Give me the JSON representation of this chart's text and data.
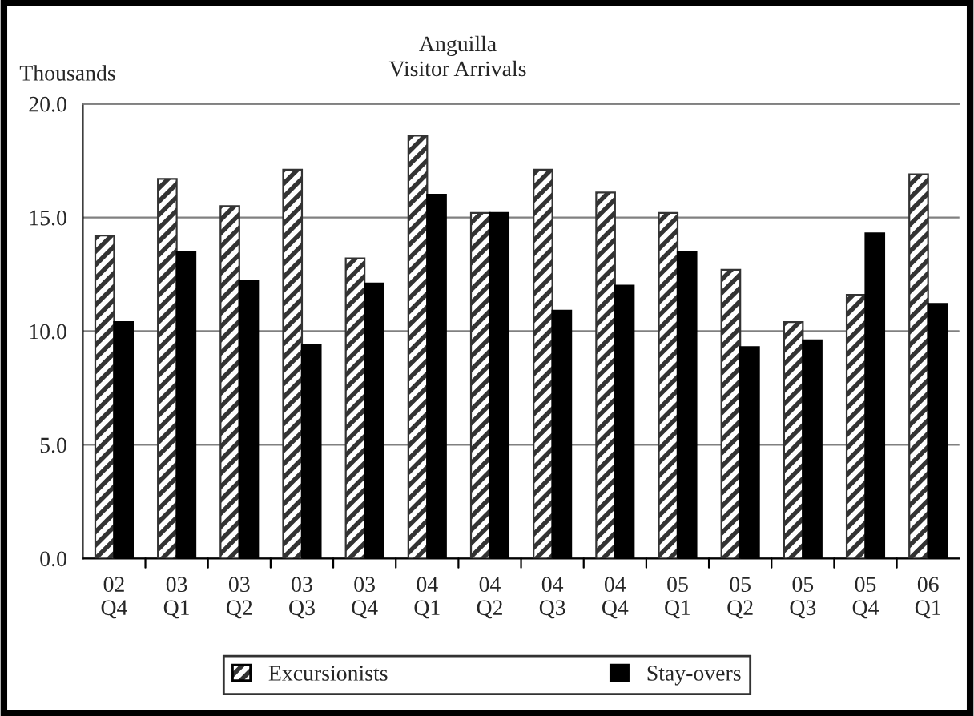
{
  "chart_data": {
    "type": "bar",
    "title": "Anguilla\nVisitor Arrivals",
    "ylabel": "Thousands",
    "categories": [
      "02\nQ4",
      "03\nQ1",
      "03\nQ2",
      "03\nQ3",
      "03\nQ4",
      "04\nQ1",
      "04\nQ2",
      "04\nQ3",
      "04\nQ4",
      "05\nQ1",
      "05\nQ2",
      "05\nQ3",
      "05\nQ4",
      "06\nQ1"
    ],
    "series": [
      {
        "name": "Excursionists",
        "color": "#333333",
        "values": [
          14.2,
          16.7,
          15.5,
          17.1,
          13.2,
          18.6,
          15.2,
          17.1,
          16.1,
          15.2,
          12.7,
          10.4,
          11.6,
          16.9
        ]
      },
      {
        "name": "Stay-overs",
        "color": "#000000",
        "values": [
          10.4,
          13.5,
          12.2,
          9.4,
          12.1,
          16.0,
          15.2,
          10.9,
          12.0,
          13.5,
          9.3,
          9.6,
          14.3,
          11.2
        ]
      }
    ],
    "ylim": [
      0,
      20
    ],
    "yticks": [
      {
        "value": 0,
        "label": "0.0"
      },
      {
        "value": 5,
        "label": "5.0"
      },
      {
        "value": 10,
        "label": "10.0"
      },
      {
        "value": 15,
        "label": "15.0"
      },
      {
        "value": 20,
        "label": "20.0"
      }
    ],
    "grid": "y",
    "legend": "bottom"
  }
}
